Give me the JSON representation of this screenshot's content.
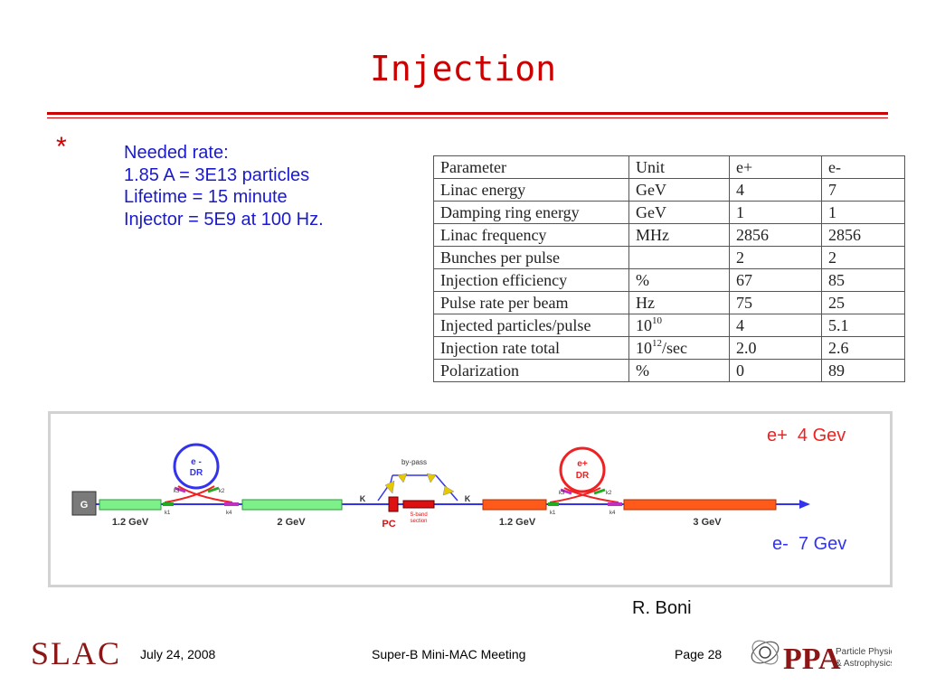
{
  "slide": {
    "title": "Injection",
    "bullet_marker": "*",
    "bullet_lines": [
      "Needed rate:",
      "1.85 A = 3E13 particles",
      "Lifetime = 15 minute",
      "Injector = 5E9 at 100 Hz."
    ]
  },
  "table": {
    "rows": [
      {
        "param": "Parameter",
        "unit": "Unit",
        "unit_sup": "",
        "eplus": "e+",
        "eminus": "e-"
      },
      {
        "param": "Linac energy",
        "unit": "GeV",
        "unit_sup": "",
        "eplus": "4",
        "eminus": "7"
      },
      {
        "param": "Damping ring energy",
        "unit": "GeV",
        "unit_sup": "",
        "eplus": "1",
        "eminus": "1"
      },
      {
        "param": "Linac frequency",
        "unit": "MHz",
        "unit_sup": "",
        "eplus": "2856",
        "eminus": "2856"
      },
      {
        "param": "Bunches per pulse",
        "unit": "",
        "unit_sup": "",
        "eplus": "2",
        "eminus": "2"
      },
      {
        "param": "Injection efficiency",
        "unit": "%",
        "unit_sup": "",
        "eplus": "67",
        "eminus": "85"
      },
      {
        "param": "Pulse rate per beam",
        "unit": "Hz",
        "unit_sup": "",
        "eplus": "75",
        "eminus": "25"
      },
      {
        "param": "Injected particles/pulse",
        "unit": "10",
        "unit_sup": "10",
        "eplus": "4",
        "eminus": "5.1"
      },
      {
        "param": "Injection rate total",
        "unit": "10",
        "unit_sup": "12",
        "unit_suffix": "/sec",
        "eplus": "2.0",
        "eminus": "2.6"
      },
      {
        "param": "Polarization",
        "unit": "%",
        "unit_sup": "",
        "eplus": "0",
        "eminus": "89"
      }
    ]
  },
  "diagram": {
    "label_eplus": "e+  4 Gev",
    "label_eminus": "e-  7 Gev",
    "gun": "G",
    "seg1": "1.2 GeV",
    "seg2": "2 GeV",
    "seg3": "1.2 GeV",
    "seg4": "3 GeV",
    "ring1_top": "e -",
    "ring1_bottom": "DR",
    "ring2_top": "e+",
    "ring2_bottom": "DR",
    "k1": "k1",
    "k2": "k2",
    "k3": "k3",
    "k4": "k4",
    "bypass": "by-pass",
    "kicker": "K",
    "pc": "PC",
    "sband_line1": "S-band",
    "sband_line2": "section",
    "colors": {
      "green": "#7ef08a",
      "orange": "#ff5a1a",
      "blue": "#3333ee",
      "red": "#ee2222"
    }
  },
  "credit": "R. Boni",
  "footer": {
    "org": "SLAC",
    "date": "July 24, 2008",
    "meeting": "Super-B Mini-MAC Meeting",
    "page": "Page 28",
    "ppa_abbr": "PPA",
    "ppa_line1": "Particle Physics",
    "ppa_line2": "& Astrophysics"
  }
}
